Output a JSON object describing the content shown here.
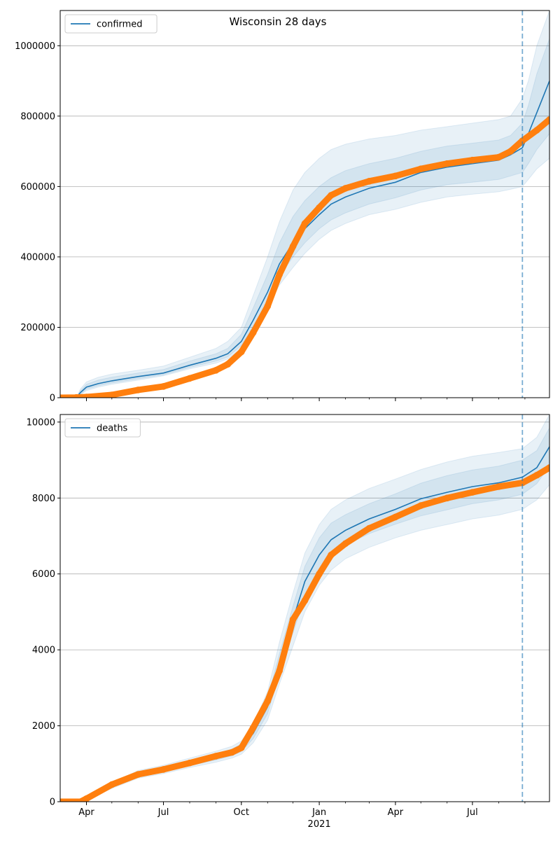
{
  "figure": {
    "title": "Wisconsin 28 days"
  },
  "chart_data": [
    {
      "type": "line",
      "legend": {
        "label": "confirmed",
        "placement": "top-left"
      },
      "ylim": [
        0,
        1100000
      ],
      "yticks": [
        0,
        200000,
        400000,
        600000,
        800000,
        1000000
      ],
      "ytick_labels": [
        "0",
        "200000",
        "400000",
        "600000",
        "800000",
        "1000000"
      ],
      "xlim": [
        "2020-03-01",
        "2021-09-30"
      ],
      "xticks": [
        "2020-04-01",
        "2020-07-01",
        "2020-10-01",
        "2021-01-01",
        "2021-04-01",
        "2021-07-01"
      ],
      "xtick_labels": [
        "",
        "",
        "",
        "",
        "",
        ""
      ],
      "forecast_start": "2021-08-29",
      "grid": "y",
      "colors": {
        "model": "#1f77b4",
        "observed": "#ff7f0e",
        "band": "#1f77b4"
      },
      "model": {
        "dates": [
          "2020-03-01",
          "2020-03-20",
          "2020-03-25",
          "2020-04-01",
          "2020-04-15",
          "2020-05-01",
          "2020-06-01",
          "2020-07-01",
          "2020-08-01",
          "2020-09-01",
          "2020-09-15",
          "2020-10-01",
          "2020-10-15",
          "2020-11-01",
          "2020-11-15",
          "2020-12-01",
          "2020-12-15",
          "2021-01-01",
          "2021-01-15",
          "2021-02-01",
          "2021-03-01",
          "2021-04-01",
          "2021-05-01",
          "2021-06-01",
          "2021-07-01",
          "2021-08-01",
          "2021-08-15",
          "2021-08-29",
          "2021-09-05",
          "2021-09-15",
          "2021-09-30"
        ],
        "values": [
          0,
          0,
          15000,
          30000,
          40000,
          48000,
          60000,
          70000,
          92000,
          112000,
          125000,
          160000,
          220000,
          300000,
          380000,
          440000,
          480000,
          520000,
          550000,
          570000,
          595000,
          612000,
          640000,
          655000,
          665000,
          675000,
          690000,
          710000,
          750000,
          810000,
          900000
        ]
      },
      "bands": [
        {
          "lower": [
            0,
            0,
            8000,
            20000,
            30000,
            38000,
            50000,
            62000,
            82000,
            98000,
            110000,
            140000,
            190000,
            255000,
            320000,
            370000,
            410000,
            450000,
            475000,
            495000,
            520000,
            535000,
            555000,
            570000,
            578000,
            585000,
            592000,
            600000,
            620000,
            650000,
            680000
          ],
          "upper": [
            0,
            0,
            25000,
            45000,
            58000,
            67000,
            78000,
            90000,
            115000,
            140000,
            160000,
            200000,
            290000,
            400000,
            500000,
            590000,
            640000,
            680000,
            705000,
            720000,
            735000,
            745000,
            760000,
            770000,
            780000,
            790000,
            800000,
            850000,
            900000,
            1000000,
            1100000
          ]
        },
        {
          "lower": [
            0,
            0,
            10000,
            24000,
            34000,
            42000,
            54000,
            65000,
            86000,
            104000,
            116000,
            148000,
            202000,
            275000,
            345000,
            400000,
            440000,
            480000,
            505000,
            525000,
            550000,
            568000,
            590000,
            605000,
            612000,
            620000,
            630000,
            640000,
            665000,
            705000,
            750000
          ],
          "upper": [
            0,
            0,
            20000,
            38000,
            50000,
            58000,
            70000,
            80000,
            104000,
            125000,
            140000,
            180000,
            255000,
            350000,
            440000,
            515000,
            560000,
            600000,
            625000,
            645000,
            665000,
            680000,
            700000,
            715000,
            723000,
            732000,
            745000,
            780000,
            830000,
            920000,
            1020000
          ]
        }
      ],
      "observed": {
        "dates": [
          "2020-03-01",
          "2020-03-20",
          "2020-04-01",
          "2020-05-01",
          "2020-06-01",
          "2020-07-01",
          "2020-08-01",
          "2020-09-01",
          "2020-09-15",
          "2020-10-01",
          "2020-10-15",
          "2020-11-01",
          "2020-11-15",
          "2020-12-01",
          "2020-12-15",
          "2021-01-01",
          "2021-01-15",
          "2021-02-01",
          "2021-03-01",
          "2021-04-01",
          "2021-05-01",
          "2021-06-01",
          "2021-07-01",
          "2021-08-01",
          "2021-08-15",
          "2021-08-29",
          "2021-09-15",
          "2021-09-30"
        ],
        "values": [
          0,
          500,
          2000,
          8000,
          22000,
          32000,
          55000,
          78000,
          95000,
          130000,
          185000,
          260000,
          350000,
          430000,
          495000,
          540000,
          575000,
          595000,
          615000,
          630000,
          650000,
          665000,
          675000,
          683000,
          700000,
          730000,
          760000,
          790000
        ]
      }
    },
    {
      "type": "line",
      "legend": {
        "label": "deaths",
        "placement": "top-left"
      },
      "ylim": [
        0,
        10200
      ],
      "yticks": [
        0,
        2000,
        4000,
        6000,
        8000,
        10000
      ],
      "ytick_labels": [
        "0",
        "2000",
        "4000",
        "6000",
        "8000",
        "10000"
      ],
      "xlim": [
        "2020-03-01",
        "2021-09-30"
      ],
      "xticks": [
        "2020-04-01",
        "2020-07-01",
        "2020-10-01",
        "2021-01-01",
        "2021-04-01",
        "2021-07-01"
      ],
      "xtick_labels": [
        "Apr",
        "Jul",
        "Oct",
        "Jan",
        "Apr",
        "Jul"
      ],
      "xtick_year": "2021",
      "forecast_start": "2021-08-29",
      "grid": "y",
      "colors": {
        "model": "#1f77b4",
        "observed": "#ff7f0e",
        "band": "#1f77b4"
      },
      "model": {
        "dates": [
          "2020-03-01",
          "2020-03-25",
          "2020-04-01",
          "2020-05-01",
          "2020-06-01",
          "2020-07-01",
          "2020-08-01",
          "2020-09-01",
          "2020-09-20",
          "2020-10-01",
          "2020-10-15",
          "2020-11-01",
          "2020-11-15",
          "2020-12-01",
          "2020-12-15",
          "2021-01-01",
          "2021-01-15",
          "2021-02-01",
          "2021-03-01",
          "2021-04-01",
          "2021-05-01",
          "2021-06-01",
          "2021-07-01",
          "2021-08-01",
          "2021-08-29",
          "2021-09-15",
          "2021-09-30"
        ],
        "values": [
          0,
          0,
          60,
          420,
          720,
          850,
          1020,
          1180,
          1300,
          1420,
          1800,
          2500,
          3600,
          4800,
          5800,
          6500,
          6900,
          7150,
          7450,
          7700,
          7980,
          8150,
          8300,
          8400,
          8550,
          8800,
          9350
        ]
      },
      "bands": [
        {
          "lower": [
            0,
            0,
            40,
            350,
            620,
            740,
            900,
            1040,
            1150,
            1250,
            1550,
            2150,
            3100,
            4100,
            5000,
            5700,
            6100,
            6400,
            6700,
            6950,
            7150,
            7300,
            7450,
            7550,
            7700,
            7950,
            8350
          ],
          "upper": [
            0,
            0,
            90,
            500,
            820,
            960,
            1150,
            1330,
            1460,
            1600,
            2050,
            2900,
            4200,
            5500,
            6550,
            7300,
            7700,
            7950,
            8250,
            8500,
            8750,
            8950,
            9100,
            9200,
            9300,
            9600,
            10200
          ]
        },
        {
          "lower": [
            0,
            0,
            50,
            380,
            660,
            790,
            950,
            1100,
            1210,
            1320,
            1660,
            2320,
            3350,
            4450,
            5400,
            6080,
            6480,
            6760,
            7060,
            7310,
            7530,
            7690,
            7850,
            7950,
            8100,
            8380,
            8850
          ],
          "upper": [
            0,
            0,
            75,
            465,
            780,
            910,
            1090,
            1260,
            1390,
            1520,
            1940,
            2720,
            3900,
            5150,
            6200,
            6950,
            7340,
            7560,
            7850,
            8110,
            8390,
            8590,
            8740,
            8840,
            9000,
            9250,
            9850
          ]
        }
      ],
      "observed": {
        "dates": [
          "2020-03-01",
          "2020-03-25",
          "2020-04-01",
          "2020-05-01",
          "2020-06-01",
          "2020-07-01",
          "2020-08-01",
          "2020-09-01",
          "2020-09-20",
          "2020-10-01",
          "2020-10-15",
          "2020-11-01",
          "2020-11-15",
          "2020-12-01",
          "2020-12-15",
          "2021-01-01",
          "2021-01-15",
          "2021-02-01",
          "2021-03-01",
          "2021-04-01",
          "2021-05-01",
          "2021-06-01",
          "2021-07-01",
          "2021-08-01",
          "2021-08-29",
          "2021-09-15",
          "2021-09-30"
        ],
        "values": [
          0,
          0,
          80,
          450,
          720,
          850,
          1020,
          1200,
          1300,
          1420,
          1950,
          2650,
          3450,
          4800,
          5300,
          6000,
          6500,
          6800,
          7200,
          7500,
          7800,
          8000,
          8150,
          8300,
          8400,
          8600,
          8800
        ]
      }
    }
  ]
}
